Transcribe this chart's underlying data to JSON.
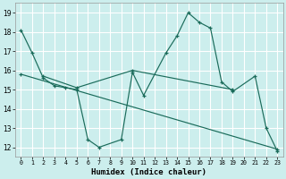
{
  "xlabel": "Humidex (Indice chaleur)",
  "bg_color": "#cceeed",
  "line_color": "#1a6b5a",
  "grid_color": "#ffffff",
  "xlim": [
    -0.5,
    23.5
  ],
  "ylim": [
    11.5,
    19.5
  ],
  "yticks": [
    12,
    13,
    14,
    15,
    16,
    17,
    18,
    19
  ],
  "xticks": [
    0,
    1,
    2,
    3,
    4,
    5,
    6,
    7,
    8,
    9,
    10,
    11,
    12,
    13,
    14,
    15,
    16,
    17,
    18,
    19,
    20,
    21,
    22,
    23
  ],
  "line1_x": [
    0,
    1,
    2,
    3,
    4,
    5,
    6,
    7,
    9,
    10,
    11,
    13,
    14,
    15,
    16,
    17,
    18,
    19,
    21,
    22,
    23
  ],
  "line1_y": [
    18.1,
    16.9,
    15.6,
    15.2,
    15.1,
    15.0,
    12.4,
    12.0,
    12.4,
    15.9,
    14.7,
    16.9,
    17.8,
    19.0,
    18.5,
    18.2,
    15.4,
    14.9,
    15.7,
    13.0,
    11.8
  ],
  "line2_x": [
    2,
    5,
    10,
    19
  ],
  "line2_y": [
    15.7,
    15.1,
    16.0,
    15.0
  ],
  "line3_x": [
    0,
    23
  ],
  "line3_y": [
    15.8,
    11.9
  ]
}
